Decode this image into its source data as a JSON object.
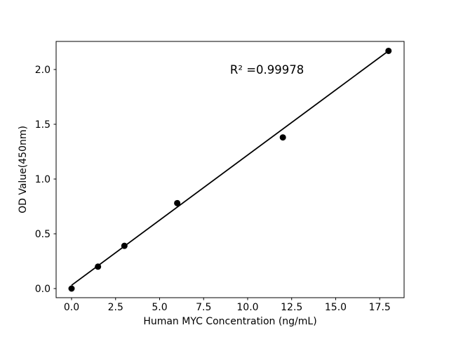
{
  "figure": {
    "background": "#ffffff",
    "foreground": "#000000"
  },
  "chart_data": {
    "type": "scatter",
    "title": "",
    "xlabel": "Human MYC Concentration (ng/mL)",
    "ylabel": "OD Value(450nm)",
    "annotation": {
      "text": "R² =0.99978",
      "x": 11.1,
      "y": 1.96
    },
    "x": [
      0,
      1.5,
      3,
      6,
      12,
      18
    ],
    "y": [
      0.0,
      0.2,
      0.39,
      0.78,
      1.38,
      2.17
    ],
    "fit_line": {
      "x_start": 0,
      "y_start": 0.03,
      "x_end": 18,
      "y_end": 2.17
    },
    "x_ticks": {
      "values": [
        0,
        2.5,
        5,
        7.5,
        10,
        12.5,
        15,
        17.5
      ],
      "labels": [
        "0.0",
        "2.5",
        "5.0",
        "7.5",
        "10.0",
        "12.5",
        "15.0",
        "17.5"
      ]
    },
    "y_ticks": {
      "values": [
        0,
        0.5,
        1,
        1.5,
        2
      ],
      "labels": [
        "0.0",
        "0.5",
        "1.0",
        "1.5",
        "2.0"
      ]
    },
    "xlim": [
      -0.877,
      18.886
    ],
    "ylim": [
      -0.0833,
      2.2564
    ],
    "grid": false,
    "legend_position": "none",
    "marker_color": "#000000",
    "marker_radius": 4.5,
    "line_color": "#000000",
    "line_width": 1.8
  }
}
